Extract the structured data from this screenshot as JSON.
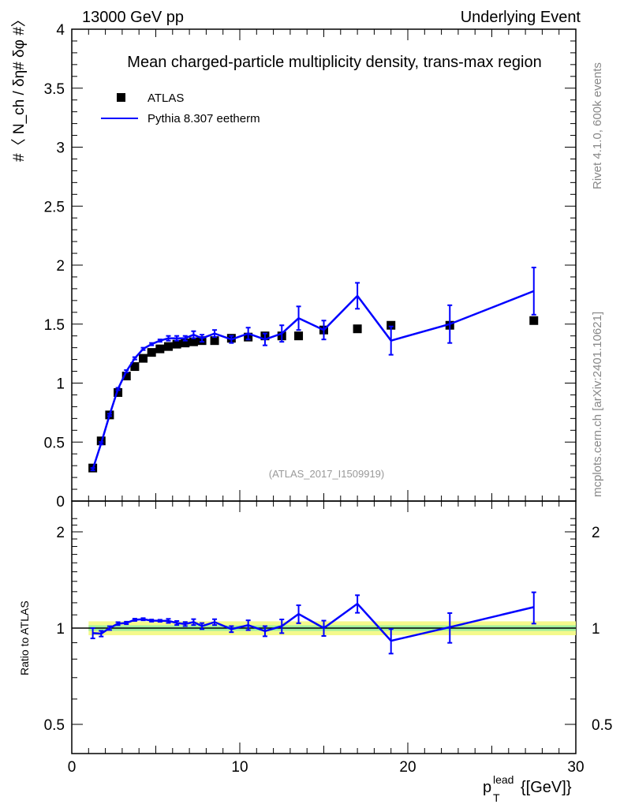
{
  "chart_data": [
    {
      "type": "scatter",
      "title": "Mean charged-particle multiplicity density, trans-max region",
      "top_left": "13000 GeV pp",
      "top_right": "Underlying Event",
      "ylabel": "#〈 N_ch / δη# δφ #〉",
      "side_label_top": "Rivet 4.1.0,  600k events",
      "side_label_bottom": "mcplots.cern.ch [arXiv:2401.10621]",
      "watermark": "(ATLAS_2017_I1509919)",
      "xlim": [
        0,
        30
      ],
      "ylim": [
        0,
        4
      ],
      "yticks": [
        "0",
        "0.5",
        "1",
        "1.5",
        "2",
        "2.5",
        "3",
        "3.5",
        "4"
      ],
      "legend_placement": "top-left",
      "x": [
        1.25,
        1.75,
        2.25,
        2.75,
        3.25,
        3.75,
        4.25,
        4.75,
        5.25,
        5.75,
        6.25,
        6.75,
        7.25,
        7.75,
        8.5,
        9.5,
        10.5,
        11.5,
        12.5,
        13.5,
        15,
        17,
        19,
        22.5,
        27.5
      ],
      "series": [
        {
          "name": "ATLAS",
          "color": "#000000",
          "values": [
            0.28,
            0.51,
            0.73,
            0.92,
            1.06,
            1.14,
            1.21,
            1.26,
            1.29,
            1.31,
            1.33,
            1.34,
            1.35,
            1.36,
            1.36,
            1.38,
            1.39,
            1.4,
            1.4,
            1.4,
            1.45,
            1.46,
            1.49,
            1.49,
            1.53
          ]
        },
        {
          "name": "Pythia 8.307 eetherm",
          "color": "#0000ff",
          "values": [
            0.27,
            0.49,
            0.73,
            0.95,
            1.1,
            1.21,
            1.29,
            1.33,
            1.36,
            1.38,
            1.38,
            1.38,
            1.41,
            1.38,
            1.42,
            1.37,
            1.42,
            1.37,
            1.42,
            1.55,
            1.45,
            1.74,
            1.36,
            1.5,
            1.78
          ],
          "errors": [
            0.01,
            0.01,
            0.01,
            0.01,
            0.01,
            0.01,
            0.01,
            0.01,
            0.01,
            0.02,
            0.02,
            0.02,
            0.03,
            0.03,
            0.03,
            0.03,
            0.05,
            0.05,
            0.07,
            0.1,
            0.08,
            0.11,
            0.12,
            0.16,
            0.2
          ]
        }
      ]
    },
    {
      "type": "line",
      "ylabel": "Ratio to ATLAS",
      "xlabel": "p_T^lead {[GeV]}",
      "xlabel_main": "p",
      "xlabel_sub": "T",
      "xlabel_sup": "lead",
      "xlabel_unit": "{[GeV]}",
      "xlim": [
        0,
        30
      ],
      "ylim": [
        0.42,
        2.3
      ],
      "yscale": "log",
      "yticks": [
        "0.5",
        "1",
        "2"
      ],
      "xticks": [
        "0",
        "10",
        "20",
        "30"
      ],
      "band_yellow": 0.05,
      "band_green": 0.02
    }
  ]
}
